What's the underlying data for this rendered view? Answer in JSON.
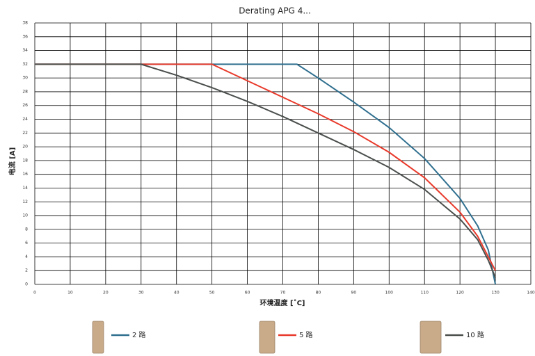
{
  "chart_data": {
    "type": "line",
    "title": "Derating APG 4...",
    "xlabel": "环境温度 [˚C]",
    "ylabel": "电流 [A]",
    "xlim": [
      0,
      140
    ],
    "xticks": [
      0,
      10,
      20,
      30,
      40,
      50,
      60,
      70,
      80,
      90,
      100,
      110,
      120,
      130,
      140
    ],
    "ylim": [
      0,
      38
    ],
    "yticks": [
      0,
      2,
      4,
      6,
      8,
      10,
      12,
      14,
      16,
      18,
      20,
      22,
      24,
      26,
      28,
      30,
      32,
      34,
      36,
      38
    ],
    "grid": true,
    "legend": "bottom",
    "series": [
      {
        "name": "2 路",
        "color": "#2f6f8f",
        "x": [
          0,
          74,
          80,
          90,
          100,
          110,
          120,
          125,
          128,
          130
        ],
        "values": [
          32,
          32,
          30,
          26.5,
          22.8,
          18.3,
          12.5,
          8.5,
          5,
          0
        ]
      },
      {
        "name": "5 路",
        "color": "#e8392a",
        "x": [
          0,
          50,
          60,
          70,
          80,
          90,
          100,
          110,
          120,
          125,
          128,
          130
        ],
        "values": [
          32,
          32,
          29.6,
          27.2,
          24.8,
          22.2,
          19.2,
          15.5,
          10.5,
          7,
          4,
          2
        ]
      },
      {
        "name": "10 路",
        "color": "#4a4f4c",
        "x": [
          0,
          30,
          40,
          50,
          60,
          70,
          80,
          90,
          100,
          110,
          120,
          125,
          128,
          130
        ],
        "values": [
          32,
          32,
          30.4,
          28.6,
          26.6,
          24.4,
          22,
          19.6,
          17,
          13.8,
          9.5,
          6.5,
          3.5,
          1
        ]
      }
    ]
  }
}
